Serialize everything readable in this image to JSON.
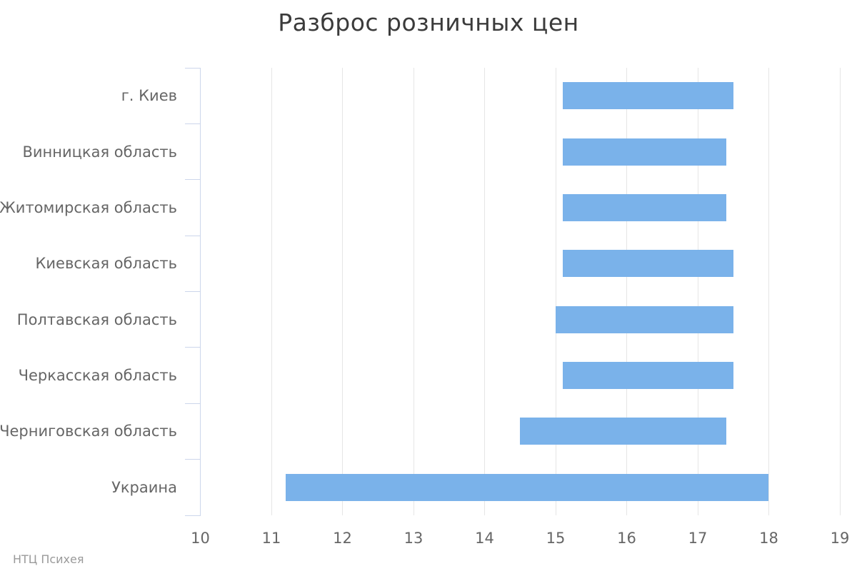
{
  "title": "Разброс розничных цен",
  "credit": "НТЦ Психея",
  "colors": {
    "bar": "#7ab2ea",
    "grid": "#e6e6e6",
    "axis_line": "#ccd6eb",
    "title_text": "#3b3b3b",
    "label_text": "#666666",
    "credit_text": "#9a9a9a",
    "background": "#ffffff"
  },
  "chart_data": {
    "type": "bar",
    "subtype": "columnrange-horizontal",
    "title": "Разброс розничных цен",
    "xlabel": "",
    "ylabel": "",
    "grid": true,
    "legend": false,
    "categories": [
      "г. Киев",
      "Винницкая область",
      "Житомирская область",
      "Киевская область",
      "Полтавская область",
      "Черкасская область",
      "Черниговская область",
      "Украина"
    ],
    "series": [
      {
        "name": "Разброс розничных цен",
        "ranges": [
          [
            15.1,
            17.5
          ],
          [
            15.1,
            17.4
          ],
          [
            15.1,
            17.4
          ],
          [
            15.1,
            17.5
          ],
          [
            15.0,
            17.5
          ],
          [
            15.1,
            17.5
          ],
          [
            14.5,
            17.4
          ],
          [
            11.2,
            18.0
          ]
        ]
      }
    ],
    "value_axis": {
      "min": 10,
      "max": 19,
      "tick_interval": 1,
      "ticks": [
        10,
        11,
        12,
        13,
        14,
        15,
        16,
        17,
        18,
        19
      ]
    }
  }
}
